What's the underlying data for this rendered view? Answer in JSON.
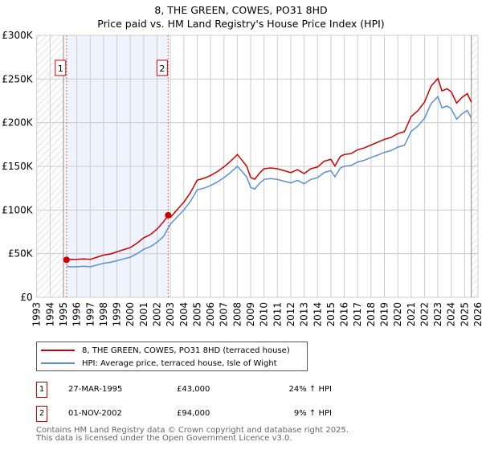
{
  "chart_data": {
    "type": "line",
    "title": "8, THE GREEN, COWES, PO31 8HD",
    "subtitle": "Price paid vs. HM Land Registry's House Price Index (HPI)",
    "xlabel": "",
    "ylabel": "",
    "xlim": [
      1993,
      2026
    ],
    "ylim": [
      0,
      300000
    ],
    "x_ticks": [
      "1993",
      "1994",
      "1995",
      "1996",
      "1997",
      "1998",
      "1999",
      "2000",
      "2001",
      "2002",
      "2003",
      "2004",
      "2005",
      "2006",
      "2007",
      "2008",
      "2009",
      "2010",
      "2011",
      "2012",
      "2013",
      "2014",
      "2015",
      "2016",
      "2017",
      "2018",
      "2019",
      "2020",
      "2021",
      "2022",
      "2023",
      "2024",
      "2025",
      "2026"
    ],
    "y_ticks": [
      {
        "v": 0,
        "label": "£0"
      },
      {
        "v": 50000,
        "label": "£50K"
      },
      {
        "v": 100000,
        "label": "£100K"
      },
      {
        "v": 150000,
        "label": "£150K"
      },
      {
        "v": 200000,
        "label": "£200K"
      },
      {
        "v": 250000,
        "label": "£250K"
      },
      {
        "v": 300000,
        "label": "£300K"
      }
    ],
    "grid": true,
    "legend_placement": "below",
    "series": [
      {
        "name": "8, THE GREEN, COWES, PO31 8HD (terraced house)",
        "color": "#cc0000",
        "x": [
          1995.23,
          1995.5,
          1996,
          1996.5,
          1997,
          1997.5,
          1998,
          1998.5,
          1999,
          1999.5,
          2000,
          2000.5,
          2001,
          2001.5,
          2002,
          2002.5,
          2002.83,
          2003,
          2003.5,
          2004,
          2004.5,
          2005,
          2005.5,
          2006,
          2006.5,
          2007,
          2007.5,
          2008,
          2008.3,
          2008.7,
          2009,
          2009.3,
          2009.7,
          2010,
          2010.5,
          2011,
          2011.5,
          2012,
          2012.5,
          2013,
          2013.5,
          2014,
          2014.5,
          2015,
          2015.3,
          2015.7,
          2016,
          2016.5,
          2017,
          2017.5,
          2018,
          2018.5,
          2019,
          2019.5,
          2020,
          2020.5,
          2021,
          2021.5,
          2022,
          2022.5,
          2023,
          2023.3,
          2023.7,
          2024,
          2024.4,
          2024.8,
          2025.2,
          2025.5
        ],
        "y": [
          43000,
          43400,
          43400,
          44000,
          43400,
          45900,
          48400,
          49600,
          52100,
          54600,
          57000,
          62000,
          68200,
          71900,
          78100,
          86800,
          94000,
          91600,
          100300,
          109000,
          119900,
          134100,
          136300,
          139500,
          143900,
          149300,
          155900,
          163500,
          158000,
          150400,
          137300,
          135200,
          142800,
          147200,
          148200,
          147200,
          145000,
          142800,
          146100,
          141700,
          147200,
          149300,
          155900,
          158000,
          150400,
          161300,
          163500,
          164600,
          169000,
          171100,
          174400,
          177700,
          180900,
          183100,
          187500,
          189700,
          207100,
          213600,
          223500,
          242000,
          250700,
          236500,
          238700,
          235400,
          222400,
          228900,
          233300,
          223500
        ]
      },
      {
        "name": "HPI: Average price, terraced house, Isle of Wight",
        "color": "#5b8fd4",
        "x": [
          1995.23,
          1995.5,
          1996,
          1996.5,
          1997,
          1997.5,
          1998,
          1998.5,
          1999,
          1999.5,
          2000,
          2000.5,
          2001,
          2001.5,
          2002,
          2002.5,
          2003,
          2003.5,
          2004,
          2004.5,
          2005,
          2005.5,
          2006,
          2006.5,
          2007,
          2007.5,
          2008,
          2008.3,
          2008.7,
          2009,
          2009.3,
          2009.7,
          2010,
          2010.5,
          2011,
          2011.5,
          2012,
          2012.5,
          2013,
          2013.5,
          2014,
          2014.5,
          2015,
          2015.3,
          2015.7,
          2016,
          2016.5,
          2017,
          2017.5,
          2018,
          2018.5,
          2019,
          2019.5,
          2020,
          2020.5,
          2021,
          2021.5,
          2022,
          2022.5,
          2023,
          2023.3,
          2023.7,
          2024,
          2024.4,
          2024.8,
          2025.2,
          2025.5
        ],
        "y": [
          35500,
          35000,
          35000,
          35500,
          35000,
          37000,
          39000,
          40000,
          42000,
          44000,
          46000,
          50000,
          55000,
          58000,
          63000,
          70000,
          84000,
          92000,
          100000,
          110000,
          123000,
          125000,
          128000,
          132000,
          137000,
          143000,
          150000,
          145000,
          138000,
          126000,
          124000,
          131000,
          135000,
          136000,
          135000,
          133000,
          131000,
          134000,
          130000,
          135000,
          137000,
          143000,
          145000,
          138000,
          148000,
          150000,
          151000,
          155000,
          157000,
          160000,
          163000,
          166000,
          168000,
          172000,
          174000,
          190000,
          196000,
          205000,
          222000,
          230000,
          217000,
          219000,
          216000,
          204000,
          210000,
          214000,
          205000
        ]
      }
    ],
    "transactions": [
      {
        "label": "1",
        "x": 1995.23,
        "y": 43000
      },
      {
        "label": "2",
        "x": 2002.83,
        "y": 94000
      }
    ],
    "shaded_range": [
      1995.23,
      2002.83
    ],
    "hatched_ranges": [
      [
        1993,
        1995
      ],
      [
        2025.5,
        2026
      ]
    ]
  },
  "legend": {
    "property": "8, THE GREEN, COWES, PO31 8HD (terraced house)",
    "hpi": "HPI: Average price, terraced house, Isle of Wight"
  },
  "table": [
    {
      "num": "1",
      "date": "27-MAR-1995",
      "price": "£43,000",
      "hpi": "24% ↑ HPI"
    },
    {
      "num": "2",
      "date": "01-NOV-2002",
      "price": "£94,000",
      "hpi": "9% ↑ HPI"
    }
  ],
  "footer": {
    "line1": "Contains HM Land Registry data © Crown copyright and database right 2025.",
    "line2": "This data is licensed under the Open Government Licence v3.0."
  }
}
